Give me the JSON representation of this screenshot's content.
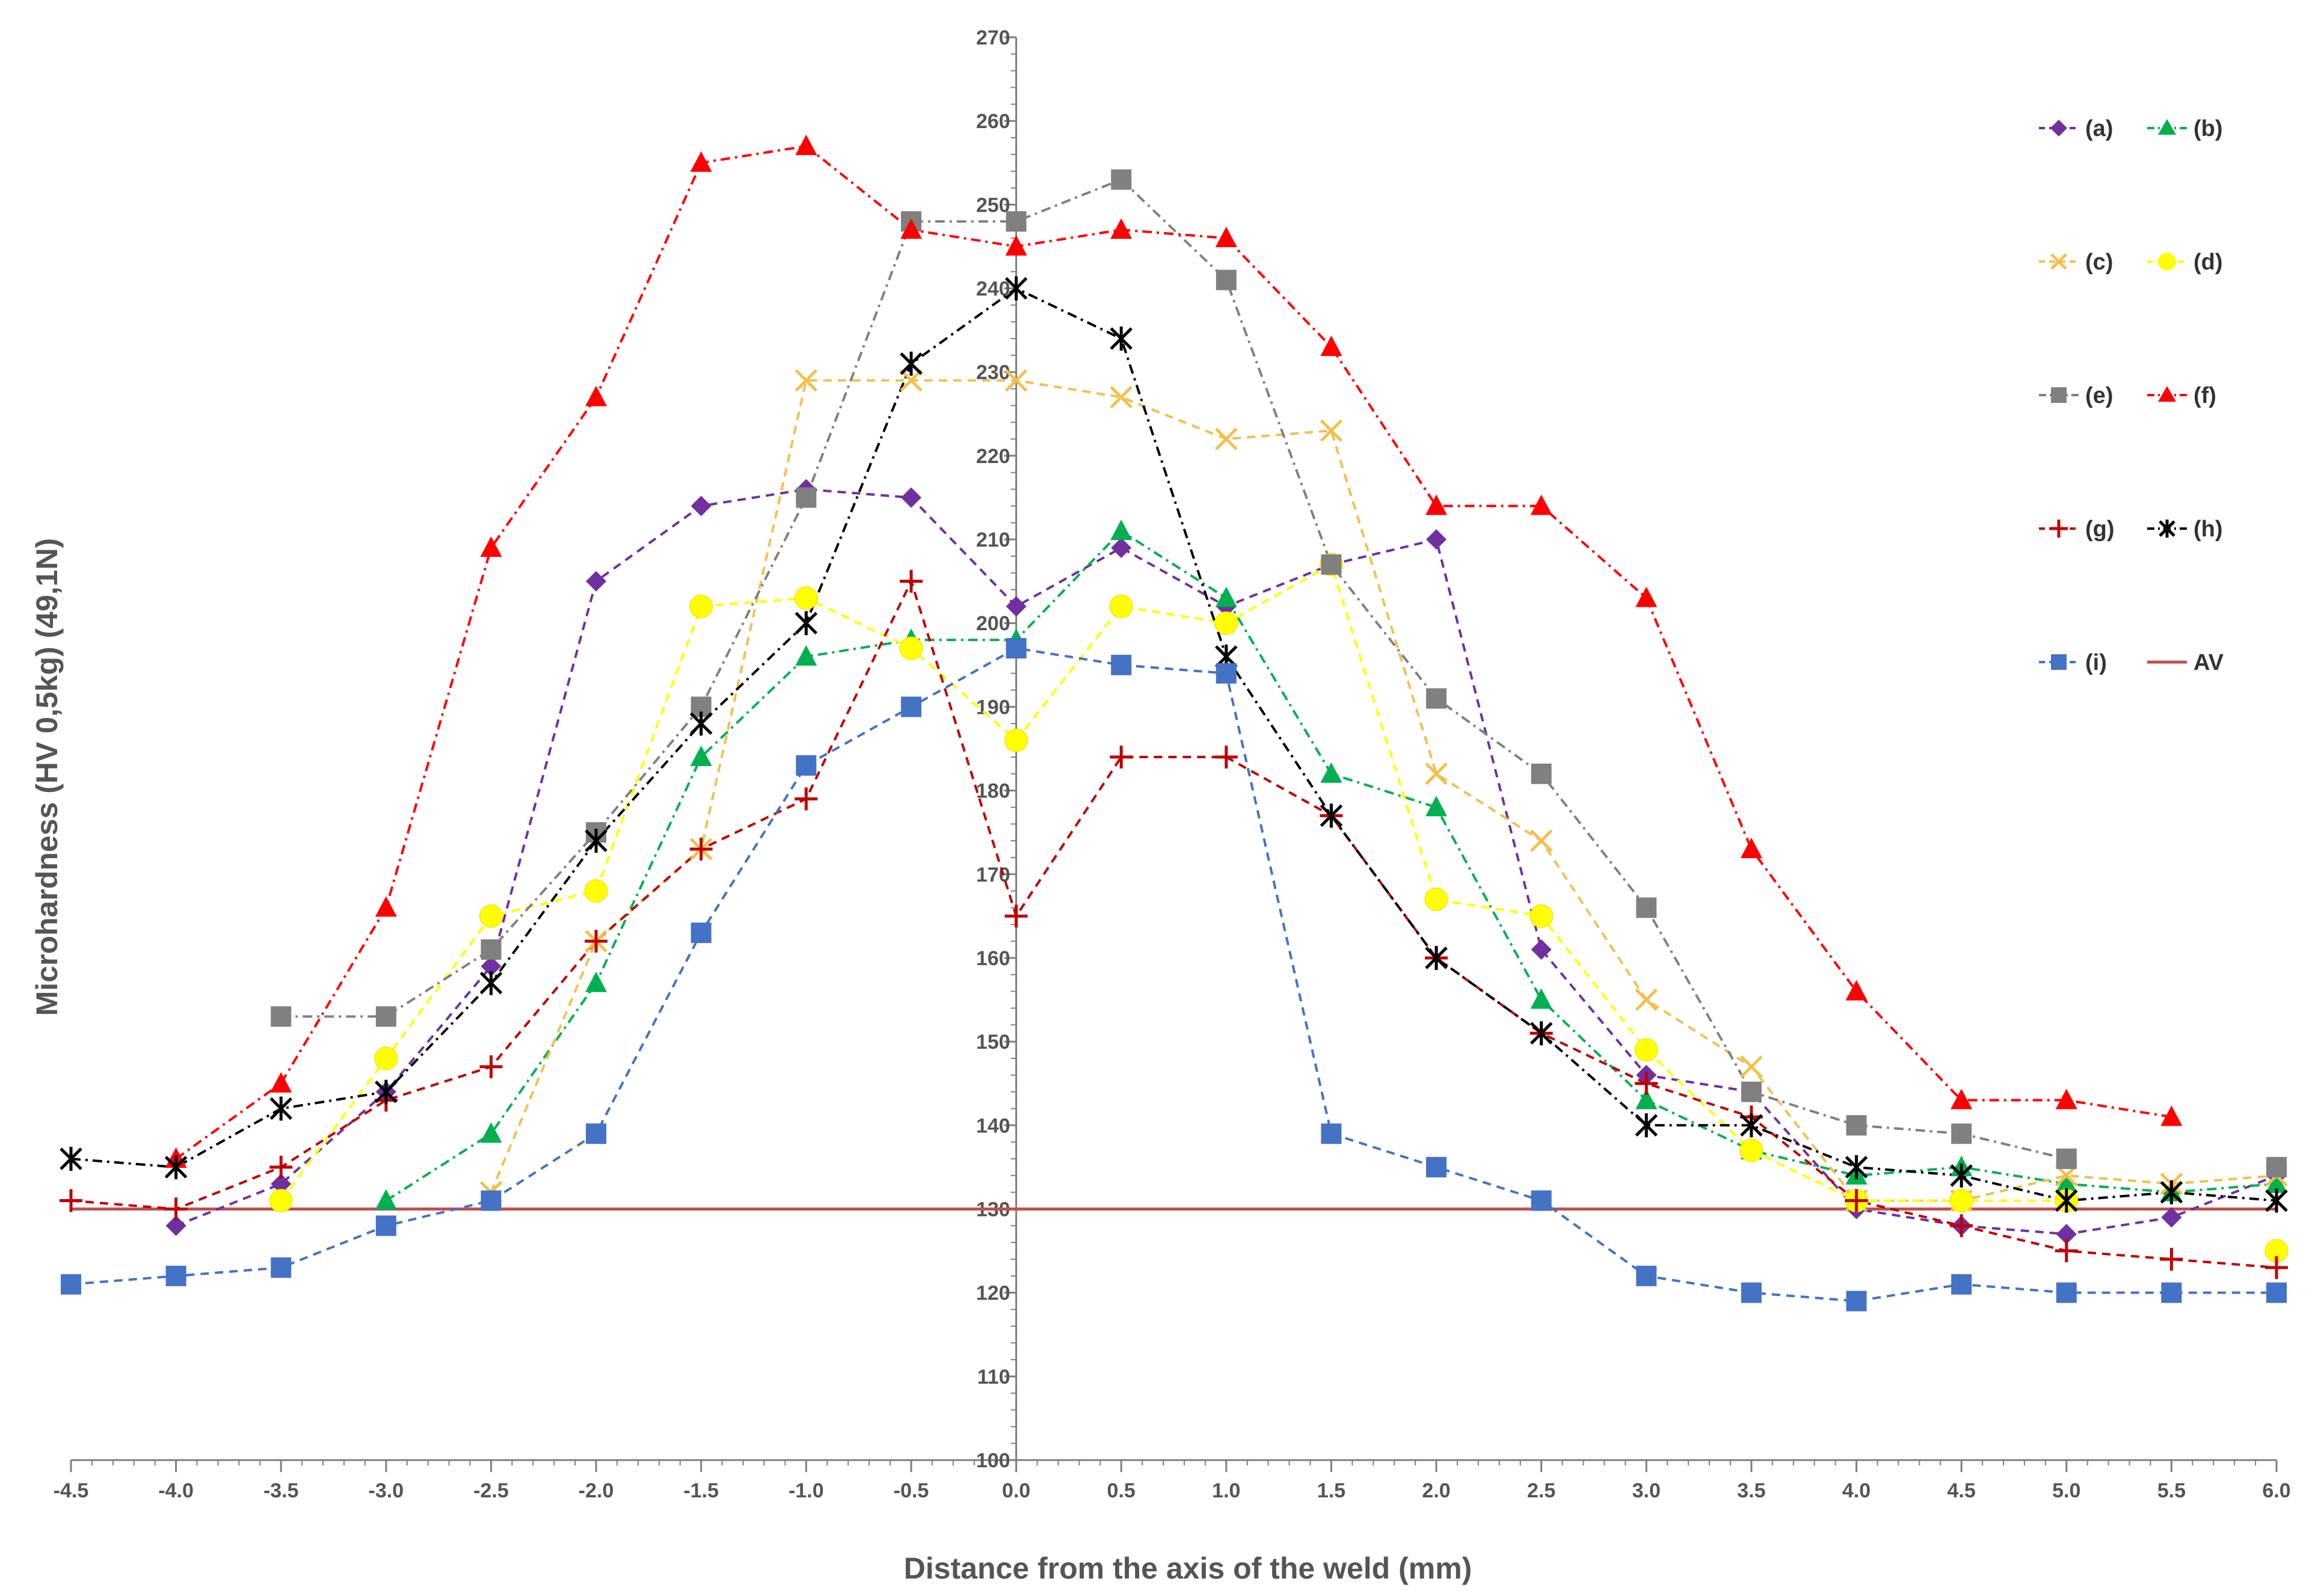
{
  "chart_data": {
    "type": "line",
    "title": "",
    "xlabel": "Distance from the axis of the weld (mm)",
    "ylabel": "Microhardness (HV 0,5kg) (49,1N)",
    "xlim": [
      -4.5,
      6.0
    ],
    "ylim": [
      100,
      270
    ],
    "x_ticks": [
      "-4.5",
      "-4.0",
      "-3.5",
      "-3.0",
      "-2.5",
      "-2.0",
      "-1.5",
      "-1.0",
      "-0.5",
      "0.0",
      "0.5",
      "1.0",
      "1.5",
      "2.0",
      "2.5",
      "3.0",
      "3.5",
      "4.0",
      "4.5",
      "5.0",
      "5.5",
      "6.0"
    ],
    "y_ticks": [
      "100",
      "110",
      "120",
      "130",
      "140",
      "150",
      "160",
      "170",
      "180",
      "190",
      "200",
      "210",
      "220",
      "230",
      "240",
      "250",
      "260",
      "270"
    ],
    "legend_position": "right",
    "x": [
      -4.5,
      -4.0,
      -3.5,
      -3.0,
      -2.5,
      -2.0,
      -1.5,
      -1.0,
      -0.5,
      0.0,
      0.5,
      1.0,
      1.5,
      2.0,
      2.5,
      3.0,
      3.5,
      4.0,
      4.5,
      5.0,
      5.5,
      6.0
    ],
    "series": [
      {
        "name": "(a)",
        "color": "#7030a0",
        "marker": "diamond",
        "dash": "dash",
        "values": [
          null,
          128,
          133,
          144,
          159,
          205,
          214,
          216,
          215,
          202,
          209,
          202,
          207,
          210,
          161,
          146,
          144,
          130,
          128,
          127,
          129,
          134
        ]
      },
      {
        "name": "(b)",
        "color": "#00b050",
        "marker": "triangle",
        "dash": "dashdot",
        "values": [
          null,
          null,
          null,
          131,
          139,
          157,
          184,
          196,
          198,
          198,
          211,
          203,
          182,
          178,
          155,
          143,
          137,
          134,
          135,
          133,
          132,
          133
        ]
      },
      {
        "name": "(c)",
        "color": "#f2c04d",
        "marker": "x",
        "dash": "dash",
        "values": [
          null,
          null,
          null,
          null,
          132,
          162,
          173,
          229,
          229,
          229,
          227,
          222,
          223,
          182,
          174,
          155,
          147,
          131,
          131,
          134,
          133,
          134
        ]
      },
      {
        "name": "(d)",
        "color": "#ffff00",
        "marker": "circle",
        "dash": "dash",
        "values": [
          null,
          null,
          131,
          148,
          165,
          168,
          202,
          203,
          197,
          186,
          202,
          200,
          207,
          167,
          165,
          149,
          137,
          131,
          131,
          131,
          null,
          125
        ]
      },
      {
        "name": "(e)",
        "color": "#808080",
        "marker": "square",
        "dash": "dashdot",
        "values": [
          null,
          null,
          153,
          153,
          161,
          175,
          190,
          215,
          248,
          248,
          253,
          241,
          207,
          191,
          182,
          166,
          144,
          140,
          139,
          136,
          null,
          135
        ]
      },
      {
        "name": "(f)",
        "color": "#ff0000",
        "marker": "triangle",
        "dash": "dashdot",
        "values": [
          null,
          136,
          145,
          166,
          209,
          227,
          255,
          257,
          247,
          245,
          247,
          246,
          233,
          214,
          214,
          203,
          173,
          156,
          143,
          143,
          141,
          null
        ]
      },
      {
        "name": "(g)",
        "color": "#c00000",
        "marker": "plus",
        "dash": "dash",
        "values": [
          131,
          130,
          135,
          143,
          147,
          162,
          173,
          179,
          205,
          165,
          184,
          184,
          177,
          160,
          151,
          145,
          141,
          131,
          128,
          125,
          124,
          123
        ]
      },
      {
        "name": "(h)",
        "color": "#000000",
        "marker": "star",
        "dash": "dashdot",
        "values": [
          136,
          135,
          142,
          144,
          157,
          174,
          188,
          200,
          231,
          240,
          234,
          196,
          177,
          160,
          151,
          140,
          140,
          135,
          134,
          131,
          132,
          131
        ]
      },
      {
        "name": "(i)",
        "color": "#4472c4",
        "marker": "square",
        "dash": "dash",
        "values": [
          121,
          122,
          123,
          128,
          131,
          139,
          163,
          183,
          190,
          197,
          195,
          194,
          139,
          135,
          131,
          122,
          120,
          119,
          121,
          120,
          120,
          120
        ]
      }
    ],
    "reference_line": {
      "name": "AV",
      "value": 130,
      "color": "#c0504d"
    },
    "legend": {
      "a": "(a)",
      "b": "(b)",
      "c": "(c)",
      "d": "(d)",
      "e": "(e)",
      "f": "(f)",
      "g": "(g)",
      "h": "(h)",
      "i": "(i)",
      "av": "AV"
    }
  }
}
